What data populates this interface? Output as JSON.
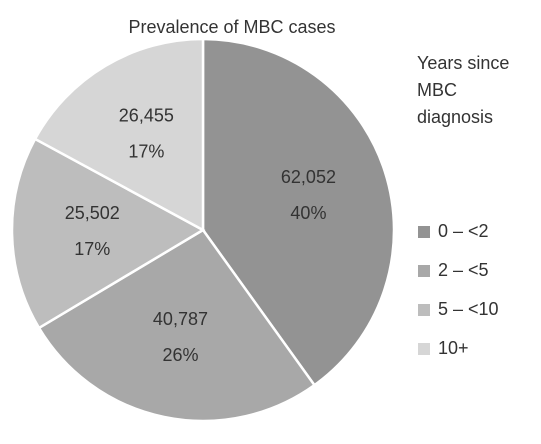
{
  "chart_data": {
    "type": "pie",
    "title": "Prevalence of MBC cases",
    "legend_title": "Years since MBC diagnosis",
    "categories": [
      "0 – <2",
      "2 – <5",
      "5 – <10",
      "10+"
    ],
    "values": [
      62052,
      40787,
      25502,
      26455
    ],
    "value_labels": [
      "62,052",
      "40,787",
      "25,502",
      "26,455"
    ],
    "percents": [
      40,
      26,
      17,
      17
    ],
    "percent_labels": [
      "40%",
      "26%",
      "17%",
      "17%"
    ],
    "colors": [
      "#939393",
      "#a8a8a8",
      "#bdbdbd",
      "#d6d6d6"
    ],
    "legend": "right"
  }
}
